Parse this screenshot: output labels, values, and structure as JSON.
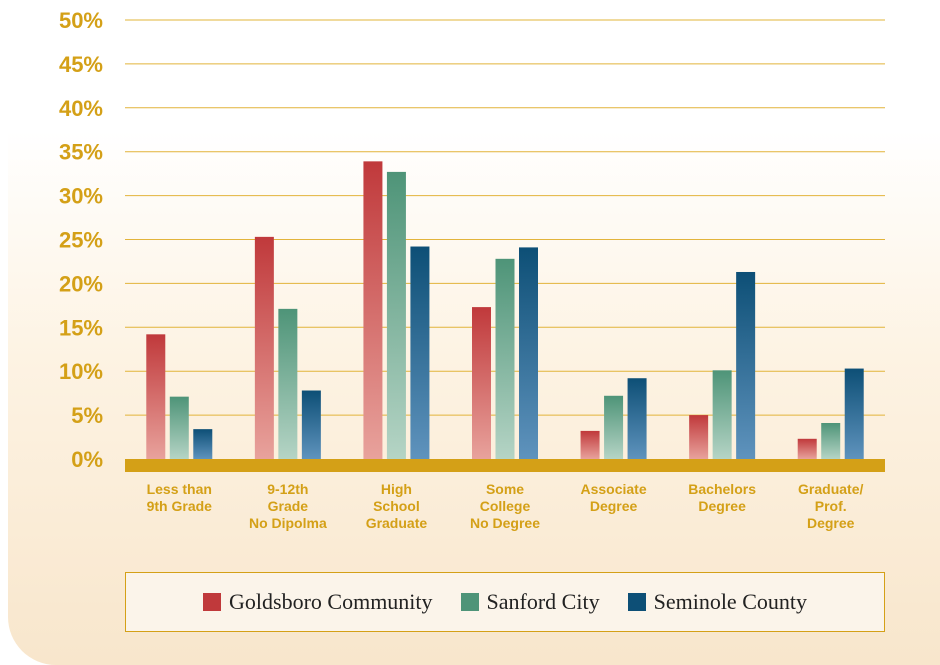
{
  "colors": {
    "accent": "#d4a017",
    "grid": "#e2b43a",
    "baseline": "#d4a017"
  },
  "chart_data": {
    "type": "bar",
    "categories": [
      [
        "Less than",
        "9th Grade"
      ],
      [
        "9-12th",
        "Grade",
        "No Dipolma"
      ],
      [
        "High",
        "School",
        "Graduate"
      ],
      [
        "Some",
        "College",
        "No Degree"
      ],
      [
        "Associate",
        "Degree"
      ],
      [
        "Bachelors",
        "Degree"
      ],
      [
        "Graduate/",
        "Prof.",
        "Degree"
      ]
    ],
    "series": [
      {
        "name": "Goldsboro Community",
        "color_top": "#c0393b",
        "color_bottom": "#e8a29c",
        "values": [
          14.2,
          25.3,
          33.9,
          17.3,
          3.2,
          5.0,
          2.3
        ]
      },
      {
        "name": "Sanford City",
        "color_top": "#4e9478",
        "color_bottom": "#b5d4c5",
        "values": [
          7.1,
          17.1,
          32.7,
          22.8,
          7.2,
          10.1,
          4.1
        ]
      },
      {
        "name": "Seminole County",
        "color_top": "#0d4f76",
        "color_bottom": "#5f93bd",
        "values": [
          3.4,
          7.8,
          24.2,
          24.1,
          9.2,
          21.3,
          10.3
        ]
      }
    ],
    "yticks": [
      "0%",
      "5%",
      "10%",
      "15%",
      "20%",
      "25%",
      "30%",
      "35%",
      "40%",
      "45%",
      "50%"
    ],
    "ylim": [
      0,
      50
    ],
    "grid": true,
    "legend_position": "bottom"
  }
}
